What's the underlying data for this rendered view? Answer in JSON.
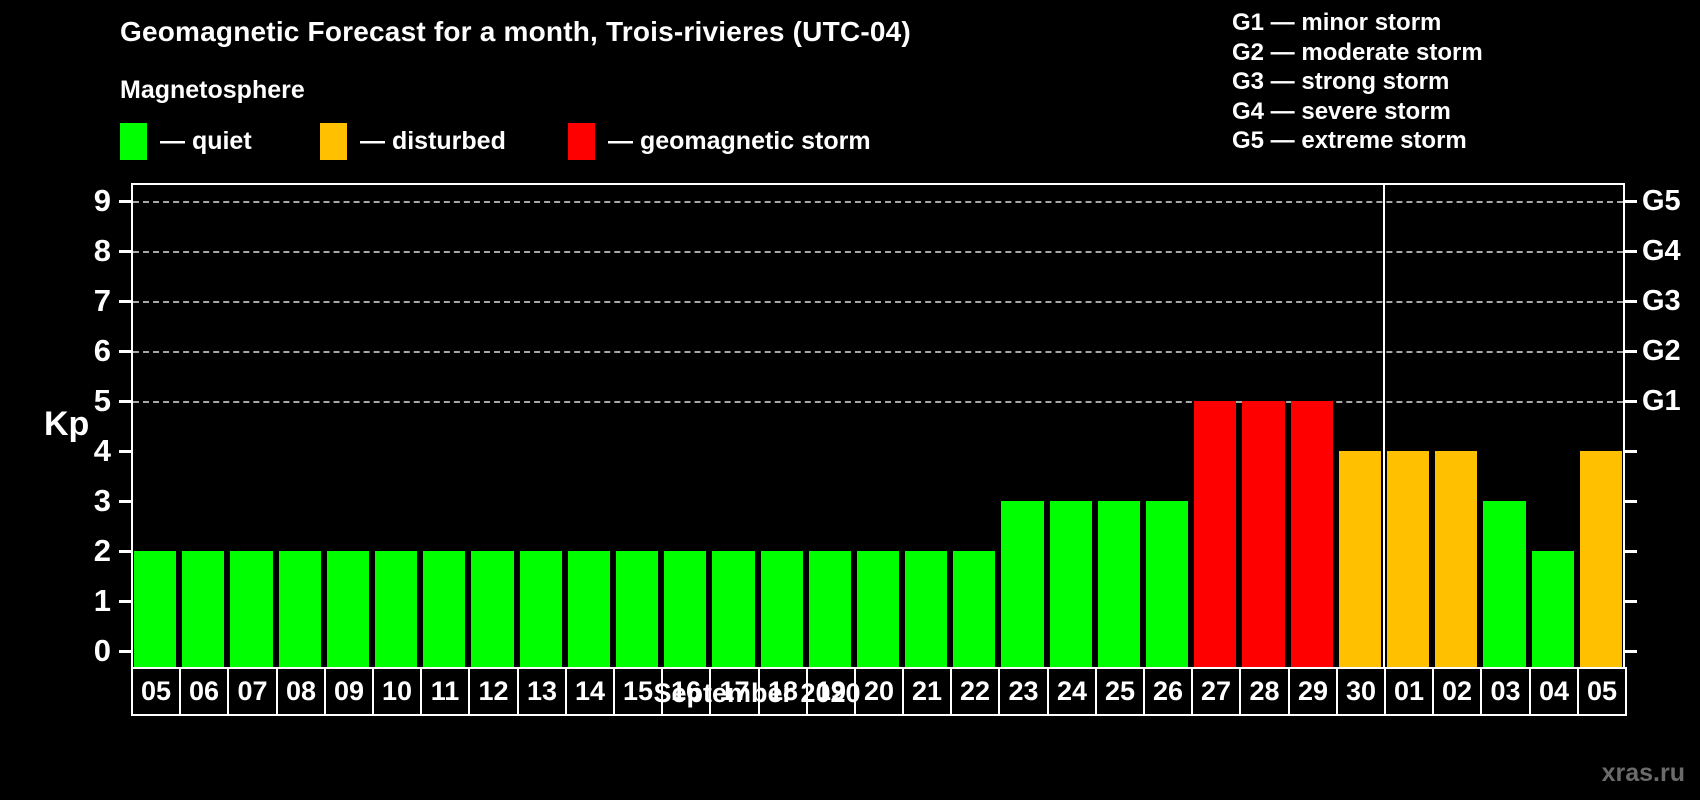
{
  "title": "Geomagnetic Forecast for a month, Trois-rivieres (UTC-04)",
  "watermark": "xras.ru",
  "legend": {
    "heading": "Magnetosphere",
    "items": [
      {
        "status": "quiet",
        "label": "— quiet"
      },
      {
        "status": "disturbed",
        "label": "— disturbed"
      },
      {
        "status": "storm",
        "label": "— geomagnetic storm"
      }
    ]
  },
  "g_scale_legend": [
    "G1 — minor storm",
    "G2 — moderate storm",
    "G3 — strong storm",
    "G4 — severe storm",
    "G5 — extreme storm"
  ],
  "colors": {
    "quiet": "#00ff00",
    "disturbed": "#ffc000",
    "storm": "#ff0000",
    "axis": "#ffffff",
    "grid": "#a8a8a8",
    "background": "#000000",
    "watermark_text": "#6b6b6b"
  },
  "chart_data": {
    "type": "bar",
    "title": "Geomagnetic Forecast for a month, Trois-rivieres (UTC-04)",
    "xlabel": "September 2020",
    "ylabel": "Kp",
    "ylim": [
      0,
      9
    ],
    "yticks": [
      0,
      1,
      2,
      3,
      4,
      5,
      6,
      7,
      8,
      9
    ],
    "grid": "dashed horizontal lines at G-storm levels only",
    "legend_position": "top",
    "right_axis": {
      "labels": [
        "G1",
        "G2",
        "G3",
        "G4",
        "G5"
      ],
      "kp_levels": [
        5,
        6,
        7,
        8,
        9
      ]
    },
    "month_divider_after_index": 25,
    "bars": [
      {
        "date": "05",
        "kp": 2,
        "status": "quiet"
      },
      {
        "date": "06",
        "kp": 2,
        "status": "quiet"
      },
      {
        "date": "07",
        "kp": 2,
        "status": "quiet"
      },
      {
        "date": "08",
        "kp": 2,
        "status": "quiet"
      },
      {
        "date": "09",
        "kp": 2,
        "status": "quiet"
      },
      {
        "date": "10",
        "kp": 2,
        "status": "quiet"
      },
      {
        "date": "11",
        "kp": 2,
        "status": "quiet"
      },
      {
        "date": "12",
        "kp": 2,
        "status": "quiet"
      },
      {
        "date": "13",
        "kp": 2,
        "status": "quiet"
      },
      {
        "date": "14",
        "kp": 2,
        "status": "quiet"
      },
      {
        "date": "15",
        "kp": 2,
        "status": "quiet"
      },
      {
        "date": "16",
        "kp": 2,
        "status": "quiet"
      },
      {
        "date": "17",
        "kp": 2,
        "status": "quiet"
      },
      {
        "date": "18",
        "kp": 2,
        "status": "quiet"
      },
      {
        "date": "19",
        "kp": 2,
        "status": "quiet"
      },
      {
        "date": "20",
        "kp": 2,
        "status": "quiet"
      },
      {
        "date": "21",
        "kp": 2,
        "status": "quiet"
      },
      {
        "date": "22",
        "kp": 2,
        "status": "quiet"
      },
      {
        "date": "23",
        "kp": 3,
        "status": "quiet"
      },
      {
        "date": "24",
        "kp": 3,
        "status": "quiet"
      },
      {
        "date": "25",
        "kp": 3,
        "status": "quiet"
      },
      {
        "date": "26",
        "kp": 3,
        "status": "quiet"
      },
      {
        "date": "27",
        "kp": 5,
        "status": "storm"
      },
      {
        "date": "28",
        "kp": 5,
        "status": "storm"
      },
      {
        "date": "29",
        "kp": 5,
        "status": "storm"
      },
      {
        "date": "30",
        "kp": 4,
        "status": "disturbed"
      },
      {
        "date": "01",
        "kp": 4,
        "status": "disturbed"
      },
      {
        "date": "02",
        "kp": 4,
        "status": "disturbed"
      },
      {
        "date": "03",
        "kp": 3,
        "status": "quiet"
      },
      {
        "date": "04",
        "kp": 2,
        "status": "quiet"
      },
      {
        "date": "05",
        "kp": 4,
        "status": "disturbed"
      }
    ]
  }
}
